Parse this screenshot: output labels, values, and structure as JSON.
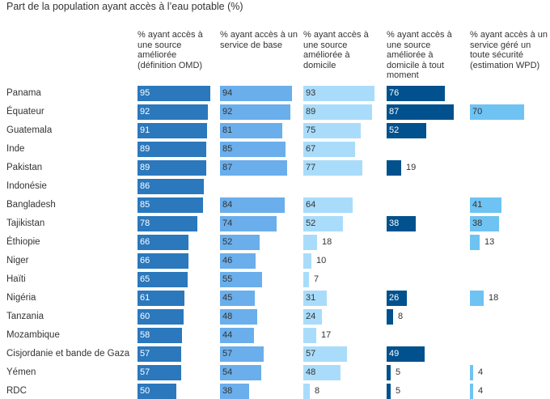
{
  "title": "Part de la population ayant accès à l’eau potable (%)",
  "colors": {
    "col1": "#2b78bd",
    "col2": "#6aaeeb",
    "col3": "#a9dcfa",
    "col4": "#00518e",
    "col5": "#6ec3f2"
  },
  "chart_data": {
    "type": "bar",
    "orientation": "horizontal",
    "title": "Part de la population ayant accès à l’eau potable (%)",
    "xlim": [
      0,
      100
    ],
    "grid": false,
    "categories": [
      "Panama",
      "Équateur",
      "Guatemala",
      "Inde",
      "Pakistan",
      "Indonésie",
      "Bangladesh",
      "Tajikistan",
      "Éthiopie",
      "Niger",
      "Haïti",
      "Nigéria",
      "Tanzania",
      "Mozambique",
      "Cisjordanie et bande de Gaza",
      "Yémen",
      "RDC"
    ],
    "series": [
      {
        "name": "% ayant accès à une source améliorée (définition OMD)",
        "values": [
          95,
          92,
          91,
          89,
          89,
          86,
          85,
          78,
          66,
          66,
          65,
          61,
          60,
          58,
          57,
          57,
          50
        ]
      },
      {
        "name": "% ayant accès à un service de base",
        "values": [
          94,
          92,
          81,
          85,
          87,
          null,
          84,
          74,
          52,
          46,
          55,
          45,
          48,
          44,
          57,
          54,
          38
        ]
      },
      {
        "name": "% ayant accès à une source améliorée à domicile",
        "values": [
          93,
          89,
          75,
          67,
          77,
          null,
          64,
          52,
          18,
          10,
          7,
          31,
          24,
          17,
          57,
          48,
          8
        ]
      },
      {
        "name": "% ayant accès à une source améliorée à domicile à tout moment",
        "values": [
          76,
          87,
          52,
          null,
          19,
          null,
          null,
          38,
          null,
          null,
          null,
          26,
          8,
          null,
          49,
          5,
          5
        ]
      },
      {
        "name": "% ayant accès à un service géré un toute sécurité (estimation WPD)",
        "values": [
          null,
          70,
          null,
          null,
          null,
          null,
          41,
          38,
          13,
          null,
          null,
          18,
          null,
          null,
          null,
          4,
          4
        ]
      }
    ]
  }
}
